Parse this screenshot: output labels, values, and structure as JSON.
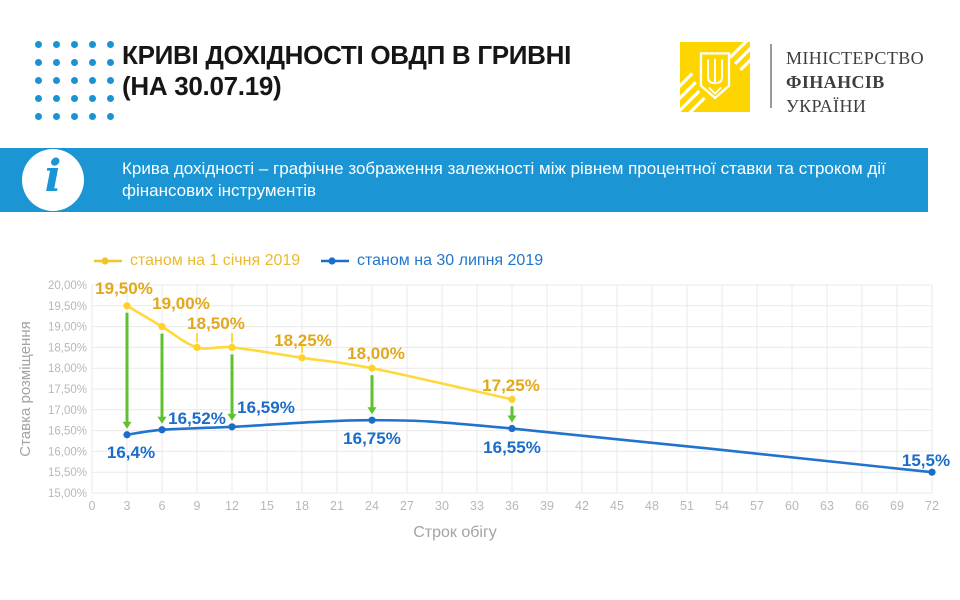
{
  "header": {
    "title_line1": "КРИВІ ДОХІДНОСТІ ОВДП В ГРИВНІ",
    "title_line2": "(НА 30.07.19)",
    "ministry": [
      "МІНІСТЕРСТВО",
      "ФІНАНСІВ",
      "УКРАЇНИ"
    ]
  },
  "info": {
    "icon_glyph": "i",
    "text": "Крива дохідності – графічне зображення залежності між рівнем процентної ставки та строком дії фінансових інструментів"
  },
  "colors": {
    "accent_blue": "#1b95d3",
    "dots_blue": "#1b93d2",
    "logo_yellow": "#ffd500",
    "yellow_line": "#ffd83c",
    "yellow_point": "#ffd12b",
    "yellow_label": "#e2a81b",
    "blue_line": "#2273cb",
    "blue_label": "#1b6dca",
    "green_arrow": "#5ec22f",
    "grid": "#e9e9e9",
    "tick_text": "#b8b8b8",
    "axis_title": "#a3a3a3"
  },
  "chart_data": {
    "type": "line",
    "xlabel": "Строк обігу",
    "ylabel": "Ставка розміщення",
    "x_ticks": [
      0,
      3,
      6,
      9,
      12,
      15,
      18,
      21,
      24,
      27,
      30,
      33,
      36,
      39,
      42,
      45,
      48,
      51,
      54,
      57,
      60,
      63,
      66,
      69,
      72
    ],
    "xlim": [
      0,
      72
    ],
    "ylim": [
      15,
      20
    ],
    "y_tick_step": 0.5,
    "y_tick_format": "percent_comma",
    "grid": true,
    "legend_position": "top-left",
    "series": [
      {
        "name": "станом на 1 січня 2019",
        "line_color": "#ffd83c",
        "point_color": "#ffd12b",
        "label_color": "#e2a81b",
        "points": [
          {
            "x": 3,
            "y": 19.5,
            "label": "19,50%"
          },
          {
            "x": 6,
            "y": 19.0,
            "label": "19,00%"
          },
          {
            "x": 9,
            "y": 18.5,
            "label": null
          },
          {
            "x": 12,
            "y": 18.5,
            "label": "18,50%"
          },
          {
            "x": 18,
            "y": 18.25,
            "label": "18,25%"
          },
          {
            "x": 24,
            "y": 18.0,
            "label": "18,00%"
          },
          {
            "x": 36,
            "y": 17.25,
            "label": "17,25%"
          }
        ]
      },
      {
        "name": "станом на 30 липня 2019",
        "line_color": "#2273cb",
        "point_color": "#1b6dca",
        "label_color": "#1b6dca",
        "points": [
          {
            "x": 3,
            "y": 16.4,
            "label": "16,4%"
          },
          {
            "x": 6,
            "y": 16.52,
            "label": "16,52%"
          },
          {
            "x": 12,
            "y": 16.59,
            "label": "16,59%"
          },
          {
            "x": 24,
            "y": 16.75,
            "label": "16,75%"
          },
          {
            "x": 36,
            "y": 16.55,
            "label": "16,55%"
          },
          {
            "x": 72,
            "y": 15.5,
            "label": "15,5%"
          }
        ]
      }
    ],
    "arrows": {
      "color": "#5ec22f",
      "from_series": 0,
      "to_series": 1,
      "at_x": [
        3,
        6,
        12,
        24,
        36
      ]
    }
  }
}
